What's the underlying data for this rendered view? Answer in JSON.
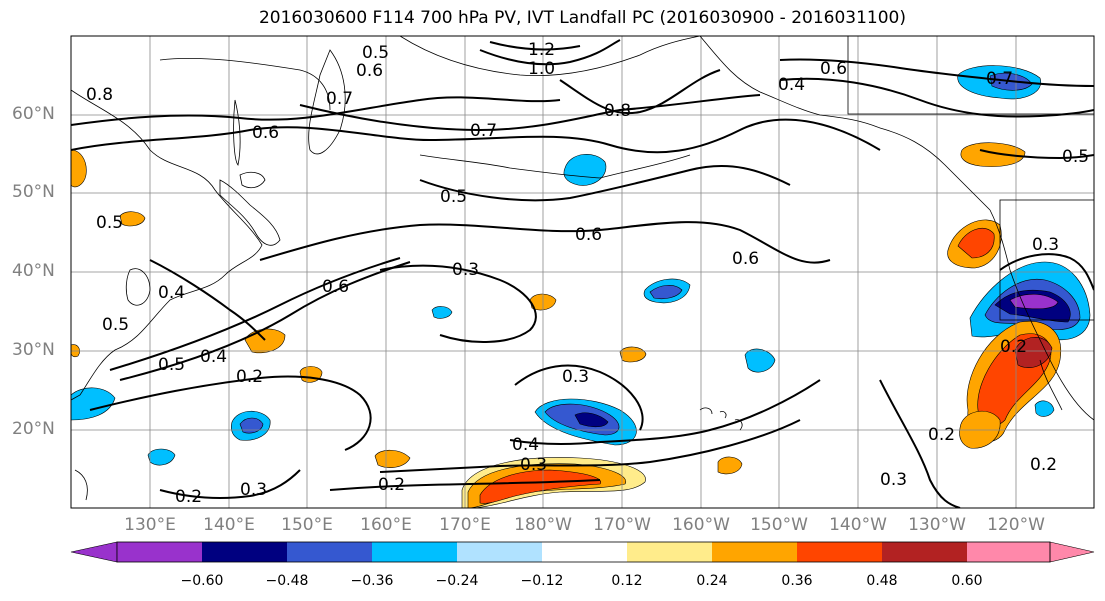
{
  "title": "2016030600 F114 700 hPa PV, IVT Landfall PC (2016030900 - 2016031100)",
  "lat_labels": [
    "60°N",
    "50°N",
    "40°N",
    "30°N",
    "20°N"
  ],
  "lon_labels": [
    "130°E",
    "140°E",
    "150°E",
    "160°E",
    "170°E",
    "180°W",
    "170°W",
    "160°W",
    "150°W",
    "140°W",
    "130°W",
    "120°W"
  ],
  "contour_labels": [
    "0.5",
    "0.6",
    "1.2",
    "1.0",
    "0.8",
    "0.4",
    "0.6",
    "0.7",
    "0.7",
    "0.8",
    "0.6",
    "0.7",
    "0.5",
    "0.5",
    "0.6",
    "0.6",
    "0.5",
    "0.3",
    "0.6",
    "0.4",
    "0.5",
    "0.4",
    "0.5",
    "0.2",
    "0.3",
    "0.4",
    "0.3",
    "0.2",
    "0.2",
    "0.3",
    "0.3",
    "0.2",
    "0.2",
    "0.2",
    "0.3"
  ],
  "colorbar": {
    "ticks": [
      "−0.60",
      "−0.48",
      "−0.36",
      "−0.24",
      "−0.12",
      "0.12",
      "0.24",
      "0.36",
      "0.48",
      "0.60"
    ],
    "colors": [
      "#9932cc",
      "#000080",
      "#3558d0",
      "#00bfff",
      "#b0e2ff",
      "#ffffff",
      "#ffec8b",
      "#ffa500",
      "#ff4500",
      "#b22222",
      "#ff88aa"
    ]
  }
}
